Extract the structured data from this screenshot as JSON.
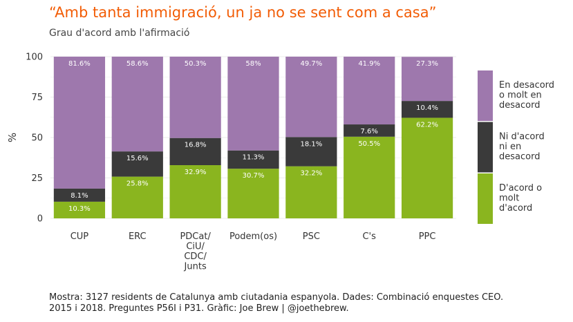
{
  "chart_data": {
    "type": "bar",
    "stacked": true,
    "title": "“Amb tanta immigració, un ja no se sent com a casa”",
    "subtitle": "Grau d'acord amb l'afirmació",
    "ylabel": "%",
    "ylim": [
      0,
      100
    ],
    "yticks": [
      "0",
      "25",
      "50",
      "75",
      "100"
    ],
    "grid": true,
    "legend_position": "right",
    "categories": [
      [
        "CUP"
      ],
      [
        "ERC"
      ],
      [
        "PDCat/",
        "CiU/",
        "CDC/",
        "Junts"
      ],
      [
        "Podem(os)"
      ],
      [
        "PSC"
      ],
      [
        "C's"
      ],
      [
        "PPC"
      ]
    ],
    "series": [
      {
        "name": [
          "D'acord o",
          "molt",
          "d'acord"
        ],
        "color": "#8ab51f",
        "values": [
          10.3,
          25.8,
          32.9,
          30.7,
          32.2,
          50.5,
          62.2
        ],
        "labels": [
          "10.3%",
          "25.8%",
          "32.9%",
          "30.7%",
          "32.2%",
          "50.5%",
          "62.2%"
        ]
      },
      {
        "name": [
          "Ni d'acord",
          "ni en",
          "desacord"
        ],
        "color": "#3a3a3a",
        "values": [
          8.1,
          15.6,
          16.8,
          11.3,
          18.1,
          7.6,
          10.4
        ],
        "labels": [
          "8.1%",
          "15.6%",
          "16.8%",
          "11.3%",
          "18.1%",
          "7.6%",
          "10.4%"
        ]
      },
      {
        "name": [
          "En desacord",
          "o molt en",
          "desacord"
        ],
        "color": "#9e78ad",
        "values": [
          81.6,
          58.6,
          50.3,
          58,
          49.7,
          41.9,
          27.3
        ],
        "labels": [
          "81.6%",
          "58.6%",
          "50.3%",
          "58%",
          "49.7%",
          "41.9%",
          "27.3%"
        ]
      }
    ]
  },
  "caption": {
    "line1": "Mostra: 3127 residents de Catalunya amb ciutadania espanyola. Dades: Combinació enquestes CEO.",
    "line2": "2015 i 2018. Preguntes P56I i P31. Gràfic: Joe Brew | @joethebrew."
  }
}
